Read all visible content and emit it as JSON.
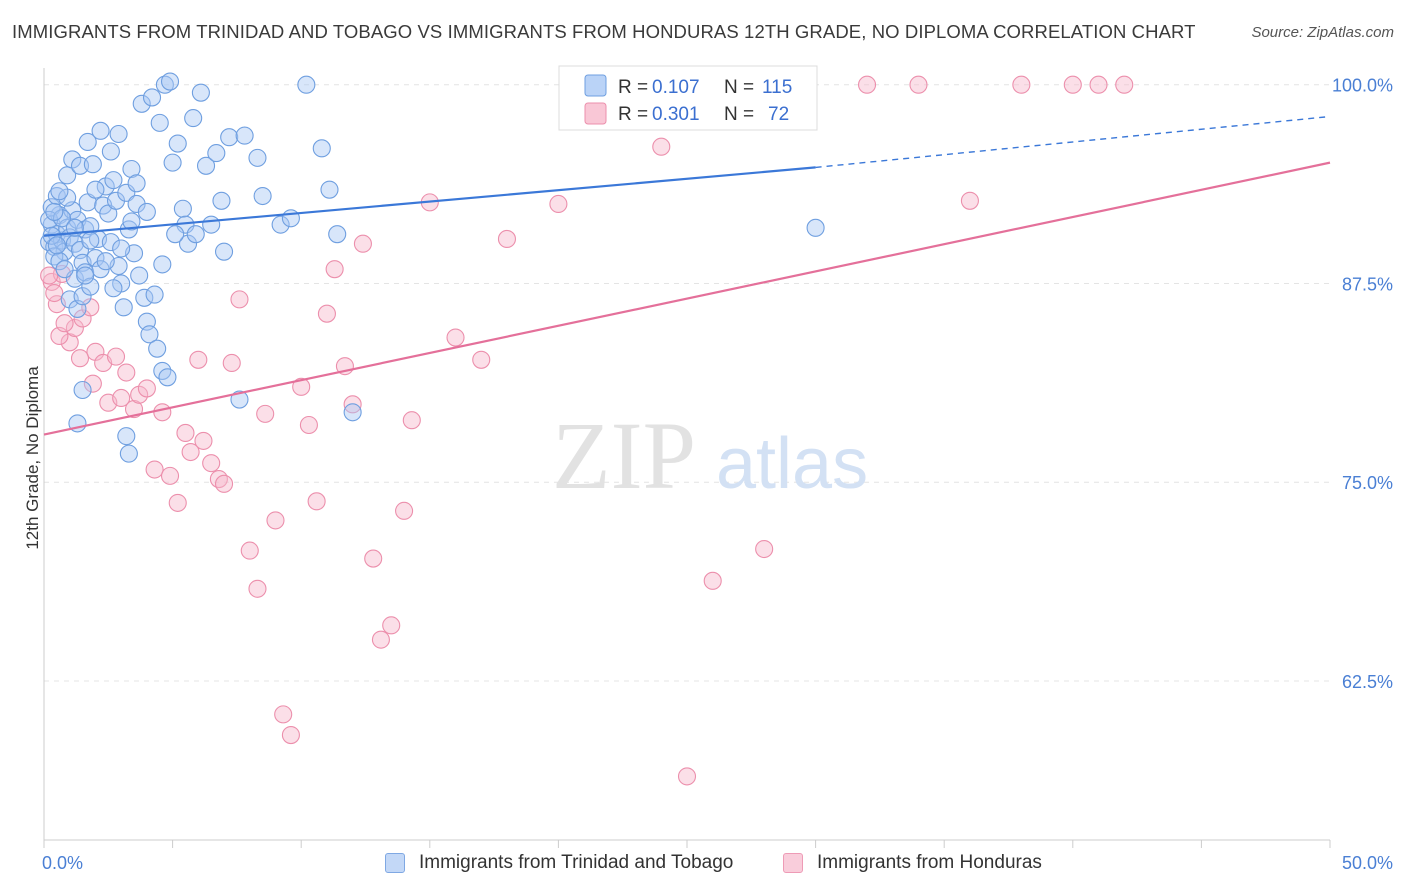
{
  "title": "IMMIGRANTS FROM TRINIDAD AND TOBAGO VS IMMIGRANTS FROM HONDURAS 12TH GRADE, NO DIPLOMA CORRELATION CHART",
  "source": "Source: ZipAtlas.com",
  "watermark": {
    "zip": "ZIP",
    "atlas": "atlas"
  },
  "legend": {
    "r_label": "R =",
    "n_label": "N =",
    "series": [
      {
        "r": "0.107",
        "n": "115",
        "fill": "#a9c8f5",
        "stroke": "#6f9fe0"
      },
      {
        "r": "0.301",
        "n": "72",
        "fill": "#f7b9cc",
        "stroke": "#ec8fac"
      }
    ]
  },
  "bottom_legend": [
    "Immigrants from Trinidad and Tobago",
    "Immigrants from Honduras"
  ],
  "chart_data": {
    "type": "scatter",
    "title": "IMMIGRANTS FROM TRINIDAD AND TOBAGO VS IMMIGRANTS FROM HONDURAS 12TH GRADE, NO DIPLOMA CORRELATION CHART",
    "xlabel": "",
    "ylabel": "12th Grade, No Diploma",
    "xlim": [
      0,
      50
    ],
    "ylim": [
      52.5,
      100.8
    ],
    "x_tick_labels": [
      "0.0%",
      "50.0%"
    ],
    "y_ticks": [
      62.5,
      75.0,
      87.5,
      100.0
    ],
    "y_tick_labels": [
      "62.5%",
      "75.0%",
      "87.5%",
      "100.0%"
    ],
    "grid": true,
    "legend_position": "top-center",
    "colors": {
      "blue_line": "#3b78d8",
      "pink_line": "#e4709a",
      "blue_point": "#a9c8f5",
      "pink_point": "#f7b9cc",
      "tick_label": "#4a7fd4"
    },
    "series": [
      {
        "name": "Immigrants from Trinidad and Tobago",
        "r": 0.107,
        "n": 115,
        "trend": {
          "x": [
            0,
            30,
            50
          ],
          "y": [
            90.5,
            94.8,
            98.0
          ],
          "solid_until": 30
        },
        "points": [
          [
            0.2,
            90.1
          ],
          [
            0.3,
            91.2
          ],
          [
            0.4,
            89.8
          ],
          [
            0.5,
            90.6
          ],
          [
            0.6,
            91.8
          ],
          [
            0.7,
            90.2
          ],
          [
            0.3,
            92.3
          ],
          [
            0.8,
            89.5
          ],
          [
            0.9,
            91.0
          ],
          [
            1.0,
            90.4
          ],
          [
            0.4,
            89.2
          ],
          [
            0.6,
            88.9
          ],
          [
            1.1,
            92.1
          ],
          [
            1.2,
            90.0
          ],
          [
            1.3,
            91.5
          ],
          [
            1.4,
            89.6
          ],
          [
            1.5,
            88.8
          ],
          [
            1.6,
            90.9
          ],
          [
            1.7,
            92.6
          ],
          [
            1.8,
            91.1
          ],
          [
            0.5,
            93.0
          ],
          [
            0.9,
            94.3
          ],
          [
            1.0,
            86.5
          ],
          [
            1.2,
            87.8
          ],
          [
            1.3,
            85.9
          ],
          [
            1.5,
            86.7
          ],
          [
            1.6,
            88.2
          ],
          [
            1.8,
            87.3
          ],
          [
            2.0,
            89.1
          ],
          [
            2.2,
            88.4
          ],
          [
            2.1,
            90.3
          ],
          [
            2.3,
            92.4
          ],
          [
            2.4,
            93.6
          ],
          [
            2.5,
            91.9
          ],
          [
            2.6,
            90.1
          ],
          [
            2.7,
            94.0
          ],
          [
            2.8,
            92.7
          ],
          [
            2.9,
            88.6
          ],
          [
            3.0,
            87.5
          ],
          [
            3.1,
            86.0
          ],
          [
            1.1,
            95.3
          ],
          [
            1.4,
            94.9
          ],
          [
            1.7,
            96.4
          ],
          [
            1.9,
            95.0
          ],
          [
            2.2,
            97.1
          ],
          [
            2.6,
            95.8
          ],
          [
            2.9,
            96.9
          ],
          [
            3.2,
            93.2
          ],
          [
            3.4,
            94.7
          ],
          [
            3.6,
            92.5
          ],
          [
            3.3,
            90.9
          ],
          [
            3.5,
            89.4
          ],
          [
            3.7,
            88.0
          ],
          [
            3.9,
            86.6
          ],
          [
            4.0,
            85.1
          ],
          [
            4.1,
            84.3
          ],
          [
            4.3,
            86.8
          ],
          [
            4.4,
            83.4
          ],
          [
            4.6,
            82.0
          ],
          [
            4.8,
            81.6
          ],
          [
            3.8,
            98.8
          ],
          [
            4.2,
            99.2
          ],
          [
            4.5,
            97.6
          ],
          [
            4.7,
            100.0
          ],
          [
            4.9,
            100.2
          ],
          [
            5.0,
            95.1
          ],
          [
            5.2,
            96.3
          ],
          [
            5.4,
            92.2
          ],
          [
            5.5,
            91.2
          ],
          [
            5.6,
            90.0
          ],
          [
            1.5,
            80.8
          ],
          [
            1.3,
            78.7
          ],
          [
            3.2,
            77.9
          ],
          [
            3.3,
            76.8
          ],
          [
            5.8,
            97.9
          ],
          [
            6.1,
            99.5
          ],
          [
            6.3,
            94.9
          ],
          [
            6.7,
            95.7
          ],
          [
            6.9,
            92.7
          ],
          [
            7.2,
            96.7
          ],
          [
            0.2,
            91.5
          ],
          [
            0.3,
            90.5
          ],
          [
            0.5,
            89.9
          ],
          [
            0.7,
            91.6
          ],
          [
            0.9,
            92.9
          ],
          [
            1.2,
            91.0
          ],
          [
            1.6,
            88.0
          ],
          [
            1.8,
            90.2
          ],
          [
            2.0,
            93.4
          ],
          [
            2.4,
            88.9
          ],
          [
            2.7,
            87.2
          ],
          [
            3.0,
            89.7
          ],
          [
            3.4,
            91.4
          ],
          [
            3.6,
            93.8
          ],
          [
            4.0,
            92.0
          ],
          [
            4.6,
            88.7
          ],
          [
            5.1,
            90.6
          ],
          [
            5.9,
            90.6
          ],
          [
            6.5,
            91.2
          ],
          [
            7.0,
            89.5
          ],
          [
            7.6,
            80.2
          ],
          [
            7.8,
            96.8
          ],
          [
            8.3,
            95.4
          ],
          [
            8.5,
            93.0
          ],
          [
            9.2,
            91.2
          ],
          [
            9.6,
            91.6
          ],
          [
            10.2,
            100.0
          ],
          [
            10.8,
            96.0
          ],
          [
            11.1,
            93.4
          ],
          [
            11.4,
            90.6
          ],
          [
            12.0,
            79.4
          ],
          [
            30.0,
            91.0
          ],
          [
            0.4,
            92.0
          ],
          [
            0.6,
            93.3
          ],
          [
            0.8,
            88.4
          ]
        ]
      },
      {
        "name": "Immigrants from Honduras",
        "r": 0.301,
        "n": 72,
        "trend": {
          "x": [
            0,
            50
          ],
          "y": [
            78.0,
            95.1
          ]
        },
        "points": [
          [
            0.3,
            87.6
          ],
          [
            0.5,
            86.2
          ],
          [
            0.7,
            88.1
          ],
          [
            1.0,
            83.8
          ],
          [
            1.2,
            84.7
          ],
          [
            1.5,
            85.3
          ],
          [
            1.8,
            86.0
          ],
          [
            2.0,
            83.2
          ],
          [
            2.3,
            82.5
          ],
          [
            2.5,
            80.0
          ],
          [
            2.8,
            82.9
          ],
          [
            3.0,
            80.3
          ],
          [
            3.2,
            81.9
          ],
          [
            3.5,
            79.6
          ],
          [
            3.7,
            80.5
          ],
          [
            4.0,
            80.9
          ],
          [
            4.3,
            75.8
          ],
          [
            4.6,
            79.4
          ],
          [
            4.9,
            75.4
          ],
          [
            5.2,
            73.7
          ],
          [
            5.5,
            78.1
          ],
          [
            5.7,
            76.9
          ],
          [
            6.0,
            82.7
          ],
          [
            6.2,
            77.6
          ],
          [
            6.5,
            76.2
          ],
          [
            6.8,
            75.2
          ],
          [
            7.0,
            74.9
          ],
          [
            7.3,
            82.5
          ],
          [
            7.6,
            86.5
          ],
          [
            8.0,
            70.7
          ],
          [
            8.3,
            68.3
          ],
          [
            8.6,
            79.3
          ],
          [
            9.0,
            72.6
          ],
          [
            9.3,
            60.4
          ],
          [
            9.6,
            59.1
          ],
          [
            10.0,
            81.0
          ],
          [
            10.3,
            78.6
          ],
          [
            10.6,
            73.8
          ],
          [
            11.0,
            85.6
          ],
          [
            11.3,
            88.4
          ],
          [
            11.7,
            82.3
          ],
          [
            12.0,
            79.9
          ],
          [
            12.4,
            90.0
          ],
          [
            12.8,
            70.2
          ],
          [
            13.1,
            65.1
          ],
          [
            13.5,
            66.0
          ],
          [
            14.0,
            73.2
          ],
          [
            14.3,
            78.9
          ],
          [
            15.0,
            92.6
          ],
          [
            16.0,
            84.1
          ],
          [
            17.0,
            82.7
          ],
          [
            18.0,
            90.3
          ],
          [
            20.0,
            92.5
          ],
          [
            21.0,
            100.0
          ],
          [
            22.0,
            100.0
          ],
          [
            24.0,
            96.1
          ],
          [
            25.0,
            56.5
          ],
          [
            26.0,
            68.8
          ],
          [
            28.0,
            70.8
          ],
          [
            32.0,
            100.0
          ],
          [
            34.0,
            100.0
          ],
          [
            36.0,
            92.7
          ],
          [
            38.0,
            100.0
          ],
          [
            40.0,
            100.0
          ],
          [
            41.0,
            100.0
          ],
          [
            42.0,
            100.0
          ],
          [
            0.2,
            88.0
          ],
          [
            0.4,
            86.9
          ],
          [
            0.6,
            84.2
          ],
          [
            0.8,
            85.0
          ],
          [
            1.4,
            82.8
          ],
          [
            1.9,
            81.2
          ]
        ]
      }
    ]
  }
}
